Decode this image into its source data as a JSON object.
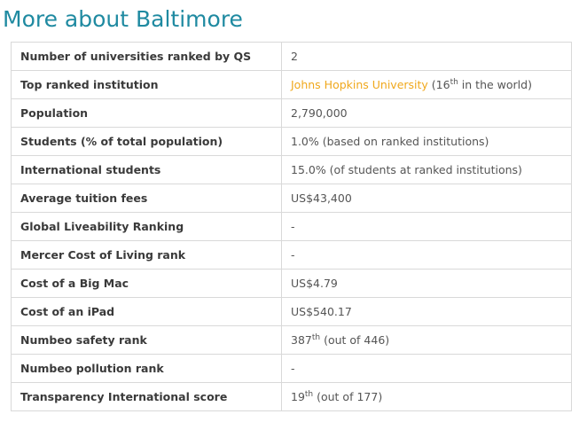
{
  "page": {
    "title": "More about Baltimore"
  },
  "colors": {
    "title": "#1f8aa1",
    "link": "#f0a81c",
    "border": "#d9d9d9"
  },
  "rows": [
    {
      "label": "Number of universities ranked by QS",
      "value": "2"
    },
    {
      "label": "Top ranked institution",
      "link": "Johns Hopkins University",
      "prefix": " (16",
      "sup": "th",
      "suffix": " in the world)"
    },
    {
      "label": "Population",
      "value": "2,790,000"
    },
    {
      "label": "Students (% of total population)",
      "value": "1.0% (based on ranked institutions)"
    },
    {
      "label": "International students",
      "value": "15.0% (of students at ranked institutions)"
    },
    {
      "label": "Average tuition fees",
      "value": "US$43,400"
    },
    {
      "label": "Global Liveability Ranking",
      "value": "-"
    },
    {
      "label": "Mercer Cost of Living rank",
      "value": "-"
    },
    {
      "label": "Cost of a Big Mac",
      "value": "US$4.79"
    },
    {
      "label": "Cost of an iPad",
      "value": "US$540.17"
    },
    {
      "label": "Numbeo safety rank",
      "prefix": "387",
      "sup": "th",
      "suffix": " (out of 446)"
    },
    {
      "label": "Numbeo pollution rank",
      "value": "-"
    },
    {
      "label": "Transparency International score",
      "prefix": "19",
      "sup": "th",
      "suffix": " (out of 177)"
    }
  ]
}
